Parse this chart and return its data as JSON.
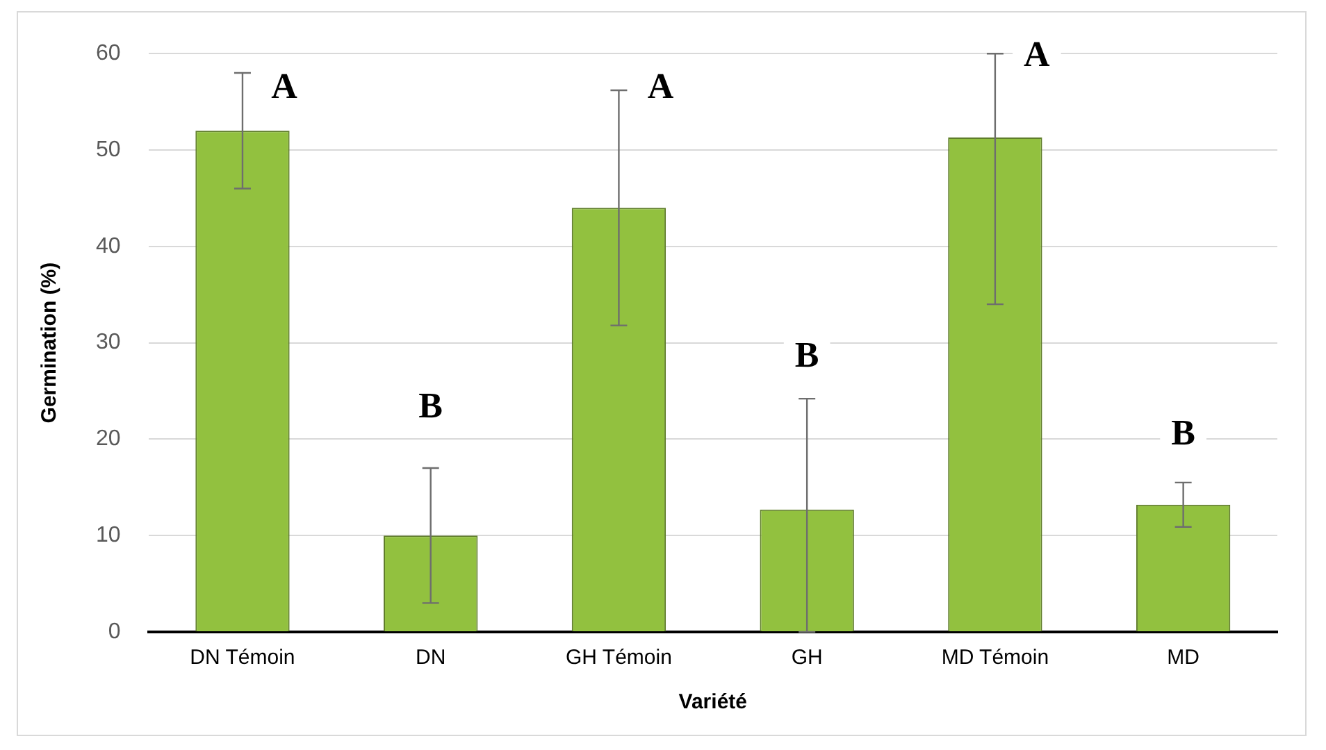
{
  "chart_data": {
    "type": "bar",
    "xlabel": "Variété",
    "ylabel": "Germination (%)",
    "categories": [
      "DN Témoin",
      "DN",
      "GH Témoin",
      "GH",
      "MD Témoin",
      "MD"
    ],
    "values": [
      52,
      10,
      44,
      12.7,
      51.3,
      13.2
    ],
    "errors": [
      6,
      7,
      12.2,
      [
        0,
        24.2
      ],
      [
        34,
        60
      ],
      2.3
    ],
    "color": "#92c13f",
    "ylim": [
      0,
      60
    ],
    "yticks": [
      0,
      10,
      20,
      30,
      40,
      50,
      60
    ],
    "grid": "y",
    "legend": false,
    "annotations": [
      {
        "text": "A",
        "x": "DN Témoin",
        "y": 56.4
      },
      {
        "text": "B",
        "x": "DN",
        "y": 23.2
      },
      {
        "text": "A",
        "x": "GH Témoin",
        "y": 56.4
      },
      {
        "text": "B",
        "x": "GH",
        "y": 28.5
      },
      {
        "text": "A",
        "x": "MD Témoin",
        "y": 59.7
      },
      {
        "text": "B",
        "x": "MD",
        "y": 20.4
      }
    ]
  }
}
